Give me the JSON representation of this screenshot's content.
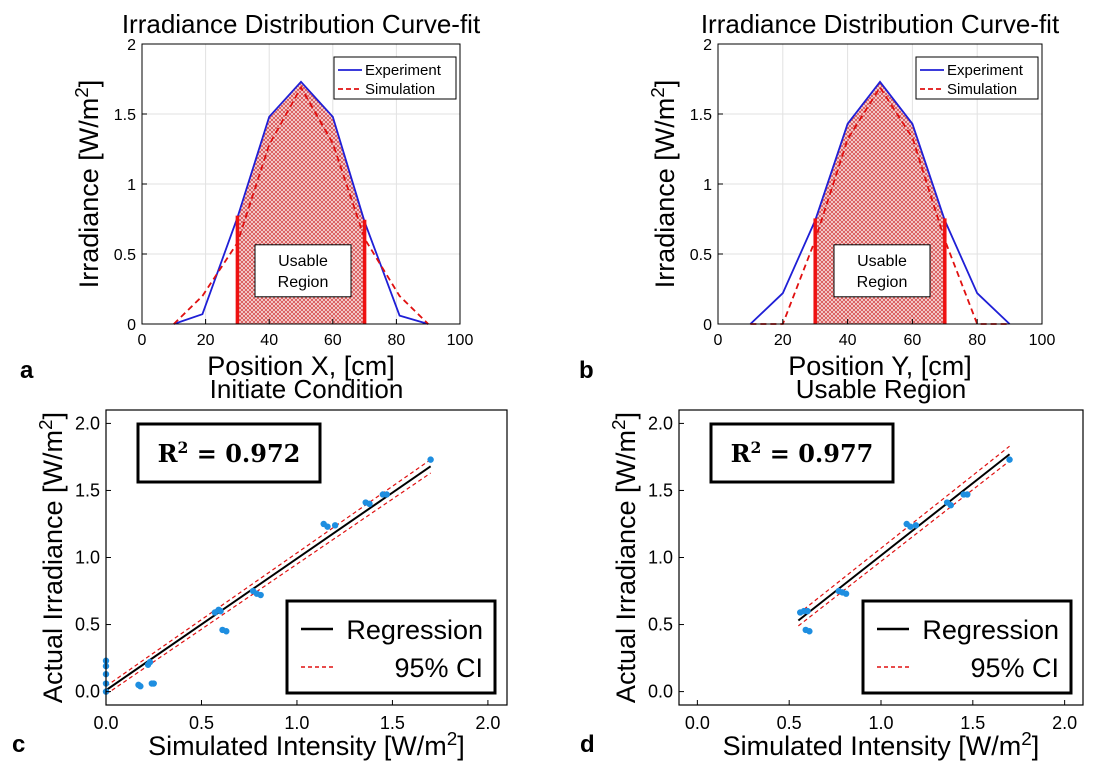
{
  "figure": {
    "panels": [
      "a",
      "b",
      "c",
      "d"
    ],
    "usable_region_label": [
      "Usable",
      "Region"
    ]
  },
  "chart_data": [
    {
      "id": "a",
      "type": "line",
      "title": "Irradiance Distribution Curve-fit",
      "xlabel": "Position X, [cm]",
      "ylabel": "Irradiance [W/m²]",
      "xlim": [
        0,
        100
      ],
      "ylim": [
        0,
        2
      ],
      "xticks": [
        0,
        20,
        40,
        60,
        80,
        100
      ],
      "yticks": [
        0,
        0.5,
        1,
        1.5,
        2
      ],
      "ytick_labels": [
        "0",
        "0.5",
        "1",
        "1.5",
        "2"
      ],
      "grid": true,
      "legend_position": "top-right",
      "usable_region": [
        30,
        70
      ],
      "series": [
        {
          "name": "Experiment",
          "color": "#1f1fd6",
          "dash": "solid",
          "x": [
            10,
            19,
            30,
            40,
            50,
            60,
            70,
            81,
            90
          ],
          "y": [
            0,
            0.07,
            0.76,
            1.48,
            1.73,
            1.48,
            0.73,
            0.06,
            0
          ]
        },
        {
          "name": "Simulation",
          "color": "#e01010",
          "dash": "dashed",
          "x": [
            10,
            19,
            30,
            40,
            50,
            60,
            70,
            81,
            90
          ],
          "y": [
            0,
            0.2,
            0.58,
            1.28,
            1.69,
            1.29,
            0.61,
            0.2,
            0
          ]
        }
      ]
    },
    {
      "id": "b",
      "type": "line",
      "title": "Irradiance Distribution Curve-fit",
      "xlabel": "Position Y, [cm]",
      "ylabel": "Irradiance [W/m²]",
      "xlim": [
        0,
        100
      ],
      "ylim": [
        0,
        2
      ],
      "xticks": [
        0,
        20,
        40,
        60,
        80,
        100
      ],
      "yticks": [
        0,
        0.5,
        1,
        1.5,
        2
      ],
      "ytick_labels": [
        "0",
        "0.5",
        "1",
        "1.5",
        "2"
      ],
      "grid": true,
      "legend_position": "top-right",
      "usable_region": [
        30,
        70
      ],
      "series": [
        {
          "name": "Experiment",
          "color": "#1f1fd6",
          "dash": "solid",
          "x": [
            10,
            20,
            30,
            40,
            50,
            60,
            70,
            80,
            90
          ],
          "y": [
            0,
            0.22,
            0.74,
            1.43,
            1.73,
            1.43,
            0.74,
            0.22,
            0
          ]
        },
        {
          "name": "Simulation",
          "color": "#e01010",
          "dash": "dashed",
          "x": [
            10,
            20,
            30,
            40,
            50,
            60,
            70,
            80,
            90
          ],
          "y": [
            0,
            0,
            0.6,
            1.32,
            1.69,
            1.33,
            0.6,
            0,
            0
          ]
        }
      ]
    },
    {
      "id": "c",
      "type": "scatter",
      "title": "Initiate Condition",
      "xlabel": "Simulated Intensity [W/m²]",
      "ylabel": "Actual Irradiance [W/m²]",
      "xlim": [
        0,
        2.1
      ],
      "ylim": [
        -0.1,
        2.1
      ],
      "xticks": [
        0,
        0.5,
        1,
        1.5,
        2
      ],
      "yticks": [
        0,
        0.5,
        1,
        1.5,
        2
      ],
      "xtick_labels": [
        "0.0",
        "0.5",
        "1.0",
        "1.5",
        "2.0"
      ],
      "ytick_labels": [
        "0.0",
        "0.5",
        "1.0",
        "1.5",
        "2.0"
      ],
      "grid": false,
      "r_squared": "0.972",
      "legend_position": "bottom-right",
      "legend": [
        "Regression",
        "95% CI"
      ],
      "regression": {
        "x": [
          0,
          1.7
        ],
        "y": [
          0.01,
          1.68
        ]
      },
      "ci_upper": {
        "x": [
          0,
          1.7
        ],
        "y": [
          0.04,
          1.73
        ]
      },
      "ci_lower": {
        "x": [
          0,
          1.7
        ],
        "y": [
          -0.02,
          1.63
        ]
      },
      "points": {
        "x": [
          0,
          0,
          0,
          0,
          0,
          0.17,
          0.18,
          0.22,
          0.23,
          0.24,
          0.25,
          0.57,
          0.59,
          0.6,
          0.61,
          0.63,
          0.77,
          0.79,
          0.81,
          1.14,
          1.16,
          1.2,
          1.36,
          1.38,
          1.45,
          1.47,
          1.7
        ],
        "y": [
          0.0,
          0.06,
          0.13,
          0.19,
          0.23,
          0.05,
          0.04,
          0.2,
          0.22,
          0.06,
          0.06,
          0.59,
          0.61,
          0.6,
          0.46,
          0.45,
          0.75,
          0.73,
          0.72,
          1.25,
          1.23,
          1.24,
          1.41,
          1.4,
          1.47,
          1.47,
          1.73
        ]
      }
    },
    {
      "id": "d",
      "type": "scatter",
      "title": "Usable Region",
      "xlabel": "Simulated Intensity [W/m²]",
      "ylabel": "Actual Irradiance [W/m²]",
      "xlim": [
        -0.1,
        2.1
      ],
      "ylim": [
        -0.1,
        2.1
      ],
      "xticks": [
        0,
        0.5,
        1,
        1.5,
        2
      ],
      "yticks": [
        0,
        0.5,
        1,
        1.5,
        2
      ],
      "xtick_labels": [
        "0.0",
        "0.5",
        "1.0",
        "1.5",
        "2.0"
      ],
      "ytick_labels": [
        "0.0",
        "0.5",
        "1.0",
        "1.5",
        "2.0"
      ],
      "grid": false,
      "r_squared": "0.977",
      "legend_position": "bottom-right",
      "legend": [
        "Regression",
        "95% CI"
      ],
      "regression": {
        "x": [
          0.55,
          1.7
        ],
        "y": [
          0.53,
          1.77
        ]
      },
      "ci_upper": {
        "x": [
          0.55,
          1.7
        ],
        "y": [
          0.58,
          1.83
        ]
      },
      "ci_lower": {
        "x": [
          0.55,
          1.7
        ],
        "y": [
          0.49,
          1.72
        ]
      },
      "points": {
        "x": [
          0.56,
          0.58,
          0.6,
          0.59,
          0.61,
          0.77,
          0.79,
          0.81,
          1.14,
          1.16,
          1.19,
          1.36,
          1.38,
          1.45,
          1.47,
          1.7
        ],
        "y": [
          0.59,
          0.6,
          0.6,
          0.46,
          0.45,
          0.75,
          0.74,
          0.73,
          1.25,
          1.23,
          1.24,
          1.41,
          1.39,
          1.47,
          1.47,
          1.73
        ]
      }
    }
  ]
}
